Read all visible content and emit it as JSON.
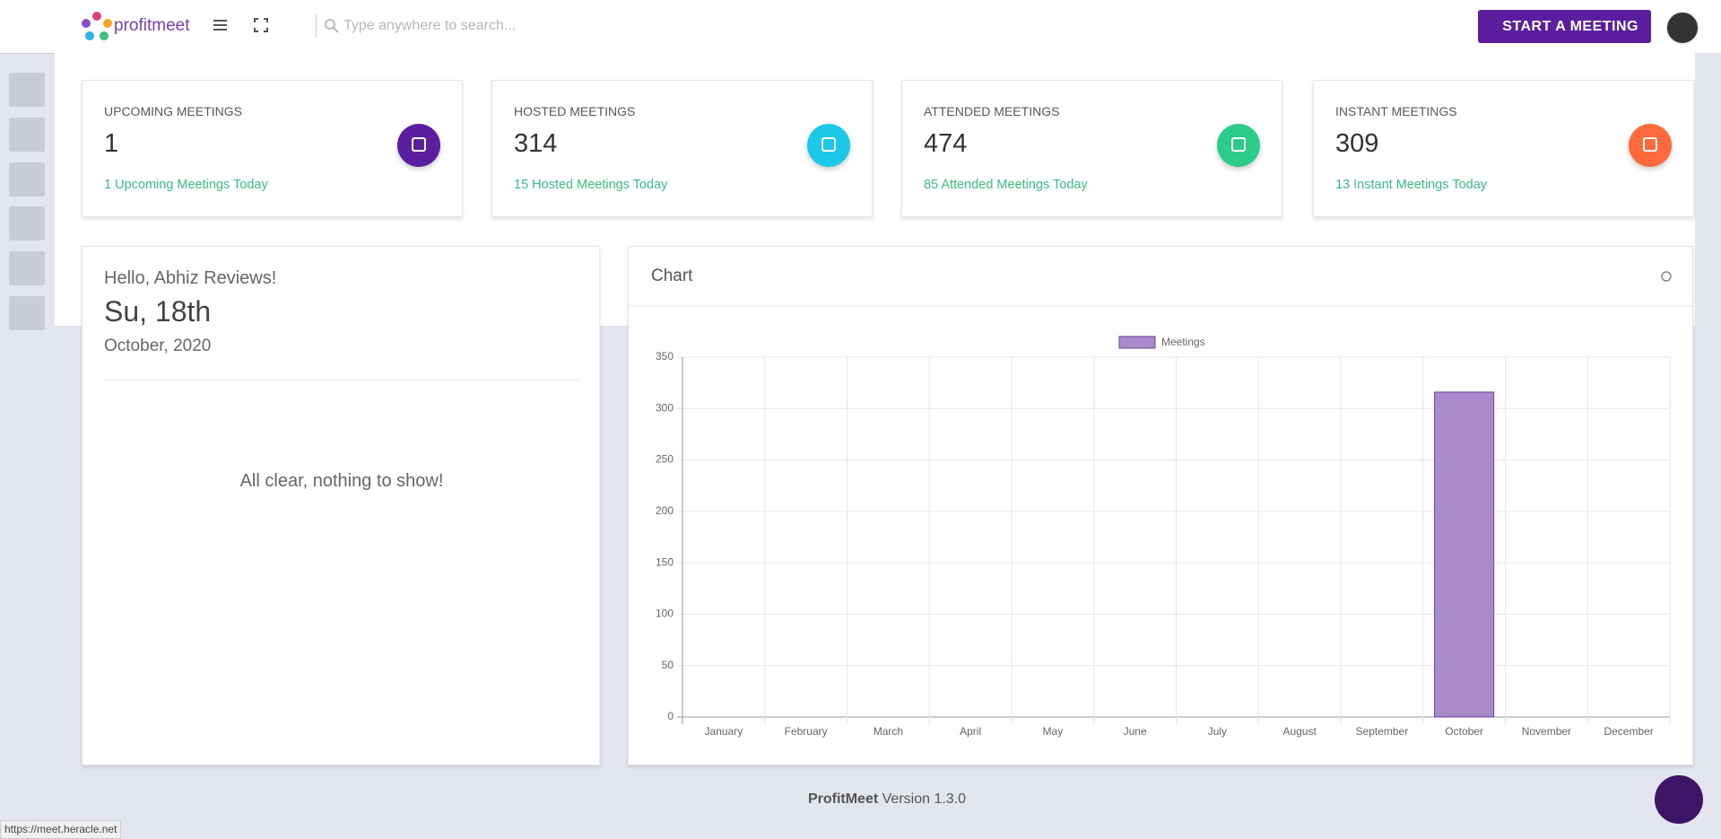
{
  "header": {
    "logo": "profitmeet",
    "search_placeholder": "Type anywhere to search...",
    "button": "START A MEETING"
  },
  "stats": [
    {
      "title": "UPCOMING MEETINGS",
      "value": 1,
      "note": "1 Upcoming Meetings Today",
      "color": "#5b1e9e"
    },
    {
      "title": "HOSTED MEETINGS",
      "value": 314,
      "note": "15 Hosted Meetings Today",
      "color": "#1bc8e8"
    },
    {
      "title": "ATTENDED MEETINGS",
      "value": 474,
      "note": "85 Attended Meetings Today",
      "color": "#2ecc8a"
    },
    {
      "title": "INSTANT MEETINGS",
      "value": 309,
      "note": "13 Instant Meetings Today",
      "color": "#ff6a3d"
    }
  ],
  "greeting": {
    "hello": "Hello, Abhiz Reviews!",
    "day": "Su, 18th",
    "month": "October, 2020",
    "empty": "All clear, nothing to show!"
  },
  "chart_data": {
    "type": "bar",
    "title": "Chart",
    "categories": [
      "January",
      "February",
      "March",
      "April",
      "May",
      "June",
      "July",
      "August",
      "September",
      "October",
      "November",
      "December"
    ],
    "series": [
      {
        "name": "Meetings",
        "color": "#a98acb",
        "values": [
          0,
          0,
          0,
          0,
          0,
          0,
          0,
          0,
          0,
          316,
          0,
          0
        ]
      }
    ],
    "ylim": [
      0,
      350
    ],
    "yticks": [
      0,
      50,
      100,
      150,
      200,
      250,
      300,
      350
    ],
    "grid": true
  },
  "footer": {
    "brand": "ProfitMeet",
    "version": "Version 1.3.0"
  },
  "status_url": "https://meet.heracle.net"
}
